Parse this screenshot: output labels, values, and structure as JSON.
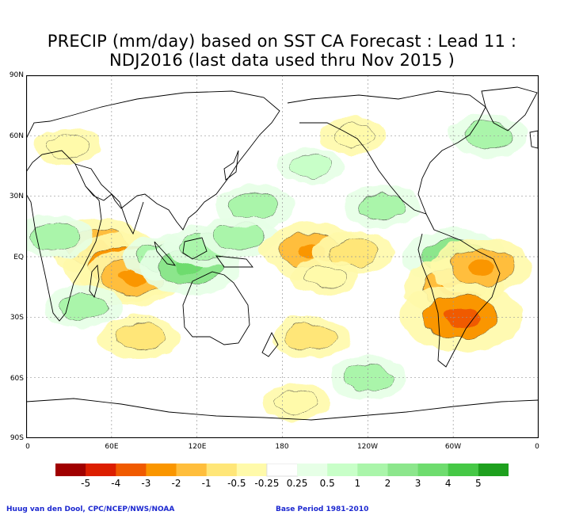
{
  "title_line1": "PRECIP (mm/day) based on SST CA Forecast : Lead 11 :",
  "title_line2": "NDJ2016 (last data used thru Nov 2015 )",
  "lat_labels": [
    "90N",
    "60N",
    "30N",
    "EQ",
    "30S",
    "60S",
    "90S"
  ],
  "lon_labels": [
    "0",
    "60E",
    "120E",
    "180",
    "120W",
    "60W",
    "0"
  ],
  "legend": {
    "colors": [
      "#a00000",
      "#dc1e00",
      "#f05a00",
      "#fa9600",
      "#ffbe3c",
      "#ffe678",
      "#fffaaa",
      "#ffffff",
      "#e6ffe6",
      "#c8ffc8",
      "#aaf5aa",
      "#8ce68c",
      "#6edc6e",
      "#46c846",
      "#1ea01e"
    ],
    "tick_labels": [
      "-5",
      "-4",
      "-3",
      "-2",
      "-1",
      "-0.5",
      "-0.25",
      "0.25",
      "0.5",
      "1",
      "2",
      "3",
      "4",
      "5"
    ]
  },
  "credit_left": "Huug van den Dool, CPC/NCEP/NWS/NOAA",
  "credit_right": "Base Period 1981-2010",
  "map_anomalies": [
    {
      "lon": 50,
      "lat": 5,
      "value": -2
    },
    {
      "lon": 70,
      "lat": -5,
      "value": -3
    },
    {
      "lon": 75,
      "lat": -10,
      "value": -2
    },
    {
      "lon": 95,
      "lat": 0,
      "value": 1
    },
    {
      "lon": 115,
      "lat": -5,
      "value": 2
    },
    {
      "lon": 125,
      "lat": 5,
      "value": 1
    },
    {
      "lon": 150,
      "lat": 10,
      "value": 1
    },
    {
      "lon": 160,
      "lat": 25,
      "value": 1
    },
    {
      "lon": 200,
      "lat": 3,
      "value": -2
    },
    {
      "lon": 230,
      "lat": 2,
      "value": -1
    },
    {
      "lon": 210,
      "lat": -10,
      "value": -0.5
    },
    {
      "lon": 300,
      "lat": 0,
      "value": 2
    },
    {
      "lon": 300,
      "lat": -15,
      "value": -2
    },
    {
      "lon": 305,
      "lat": -30,
      "value": -3
    },
    {
      "lon": 320,
      "lat": -5,
      "value": -2
    },
    {
      "lon": 40,
      "lat": -25,
      "value": 1
    },
    {
      "lon": 20,
      "lat": 10,
      "value": 1
    },
    {
      "lon": 80,
      "lat": -40,
      "value": -1
    },
    {
      "lon": 200,
      "lat": -40,
      "value": -1
    },
    {
      "lon": 30,
      "lat": 55,
      "value": -0.5
    },
    {
      "lon": 230,
      "lat": 60,
      "value": -0.5
    },
    {
      "lon": 325,
      "lat": 60,
      "value": 1
    },
    {
      "lon": 200,
      "lat": 45,
      "value": 0.5
    },
    {
      "lon": 250,
      "lat": 25,
      "value": 1
    },
    {
      "lon": 240,
      "lat": -60,
      "value": 1
    },
    {
      "lon": 190,
      "lat": -72,
      "value": -0.5
    }
  ]
}
